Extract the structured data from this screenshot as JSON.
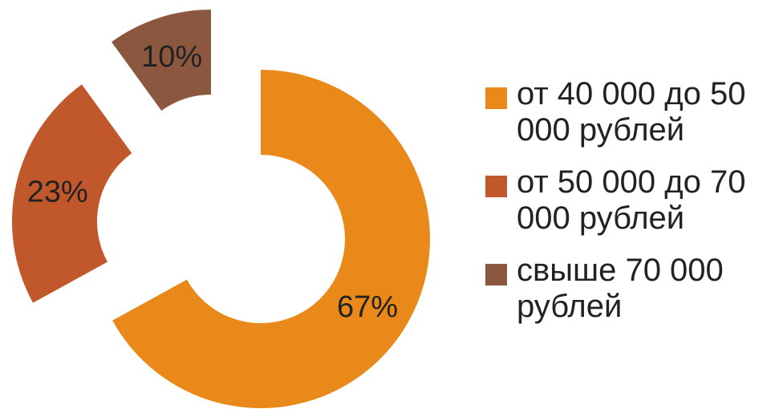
{
  "chart_data": {
    "type": "donut",
    "categories": [
      "от 40 000 до 50 000 рублей",
      "от 50 000 до 70 000 рублей",
      "свыше 70 000 рублей"
    ],
    "values": [
      67,
      23,
      10
    ],
    "value_labels": [
      "67%",
      "23%",
      "10%"
    ],
    "colors": [
      "#e8891a",
      "#c0582c",
      "#8b573e"
    ],
    "legend": "right"
  }
}
